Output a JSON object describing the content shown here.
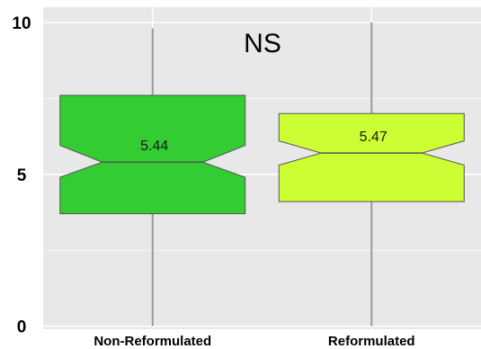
{
  "chart_data": {
    "type": "box",
    "notched": true,
    "categories": [
      "Non-Reformulated",
      "Reformulated"
    ],
    "boxes": [
      {
        "category": "Non-Reformulated",
        "whisker_low": 0,
        "q1": 3.7,
        "median": 5.4,
        "q3": 7.6,
        "whisker_high": 9.8,
        "notch_low": 4.9,
        "notch_high": 5.95,
        "mean_label": "5.44",
        "color": "#33cc33"
      },
      {
        "category": "Reformulated",
        "whisker_low": 0,
        "q1": 4.1,
        "median": 5.7,
        "q3": 7.0,
        "whisker_high": 10.0,
        "notch_low": 5.3,
        "notch_high": 6.1,
        "mean_label": "5.47",
        "color": "#ccff33"
      }
    ],
    "yticks": [
      "0",
      "5",
      "10"
    ],
    "ylim": [
      -0.1,
      10.5
    ],
    "annotation": "NS",
    "grid": true,
    "background_color": "#e8e8e8",
    "grid_color": "#ffffff",
    "whisker_color": "#999999"
  }
}
